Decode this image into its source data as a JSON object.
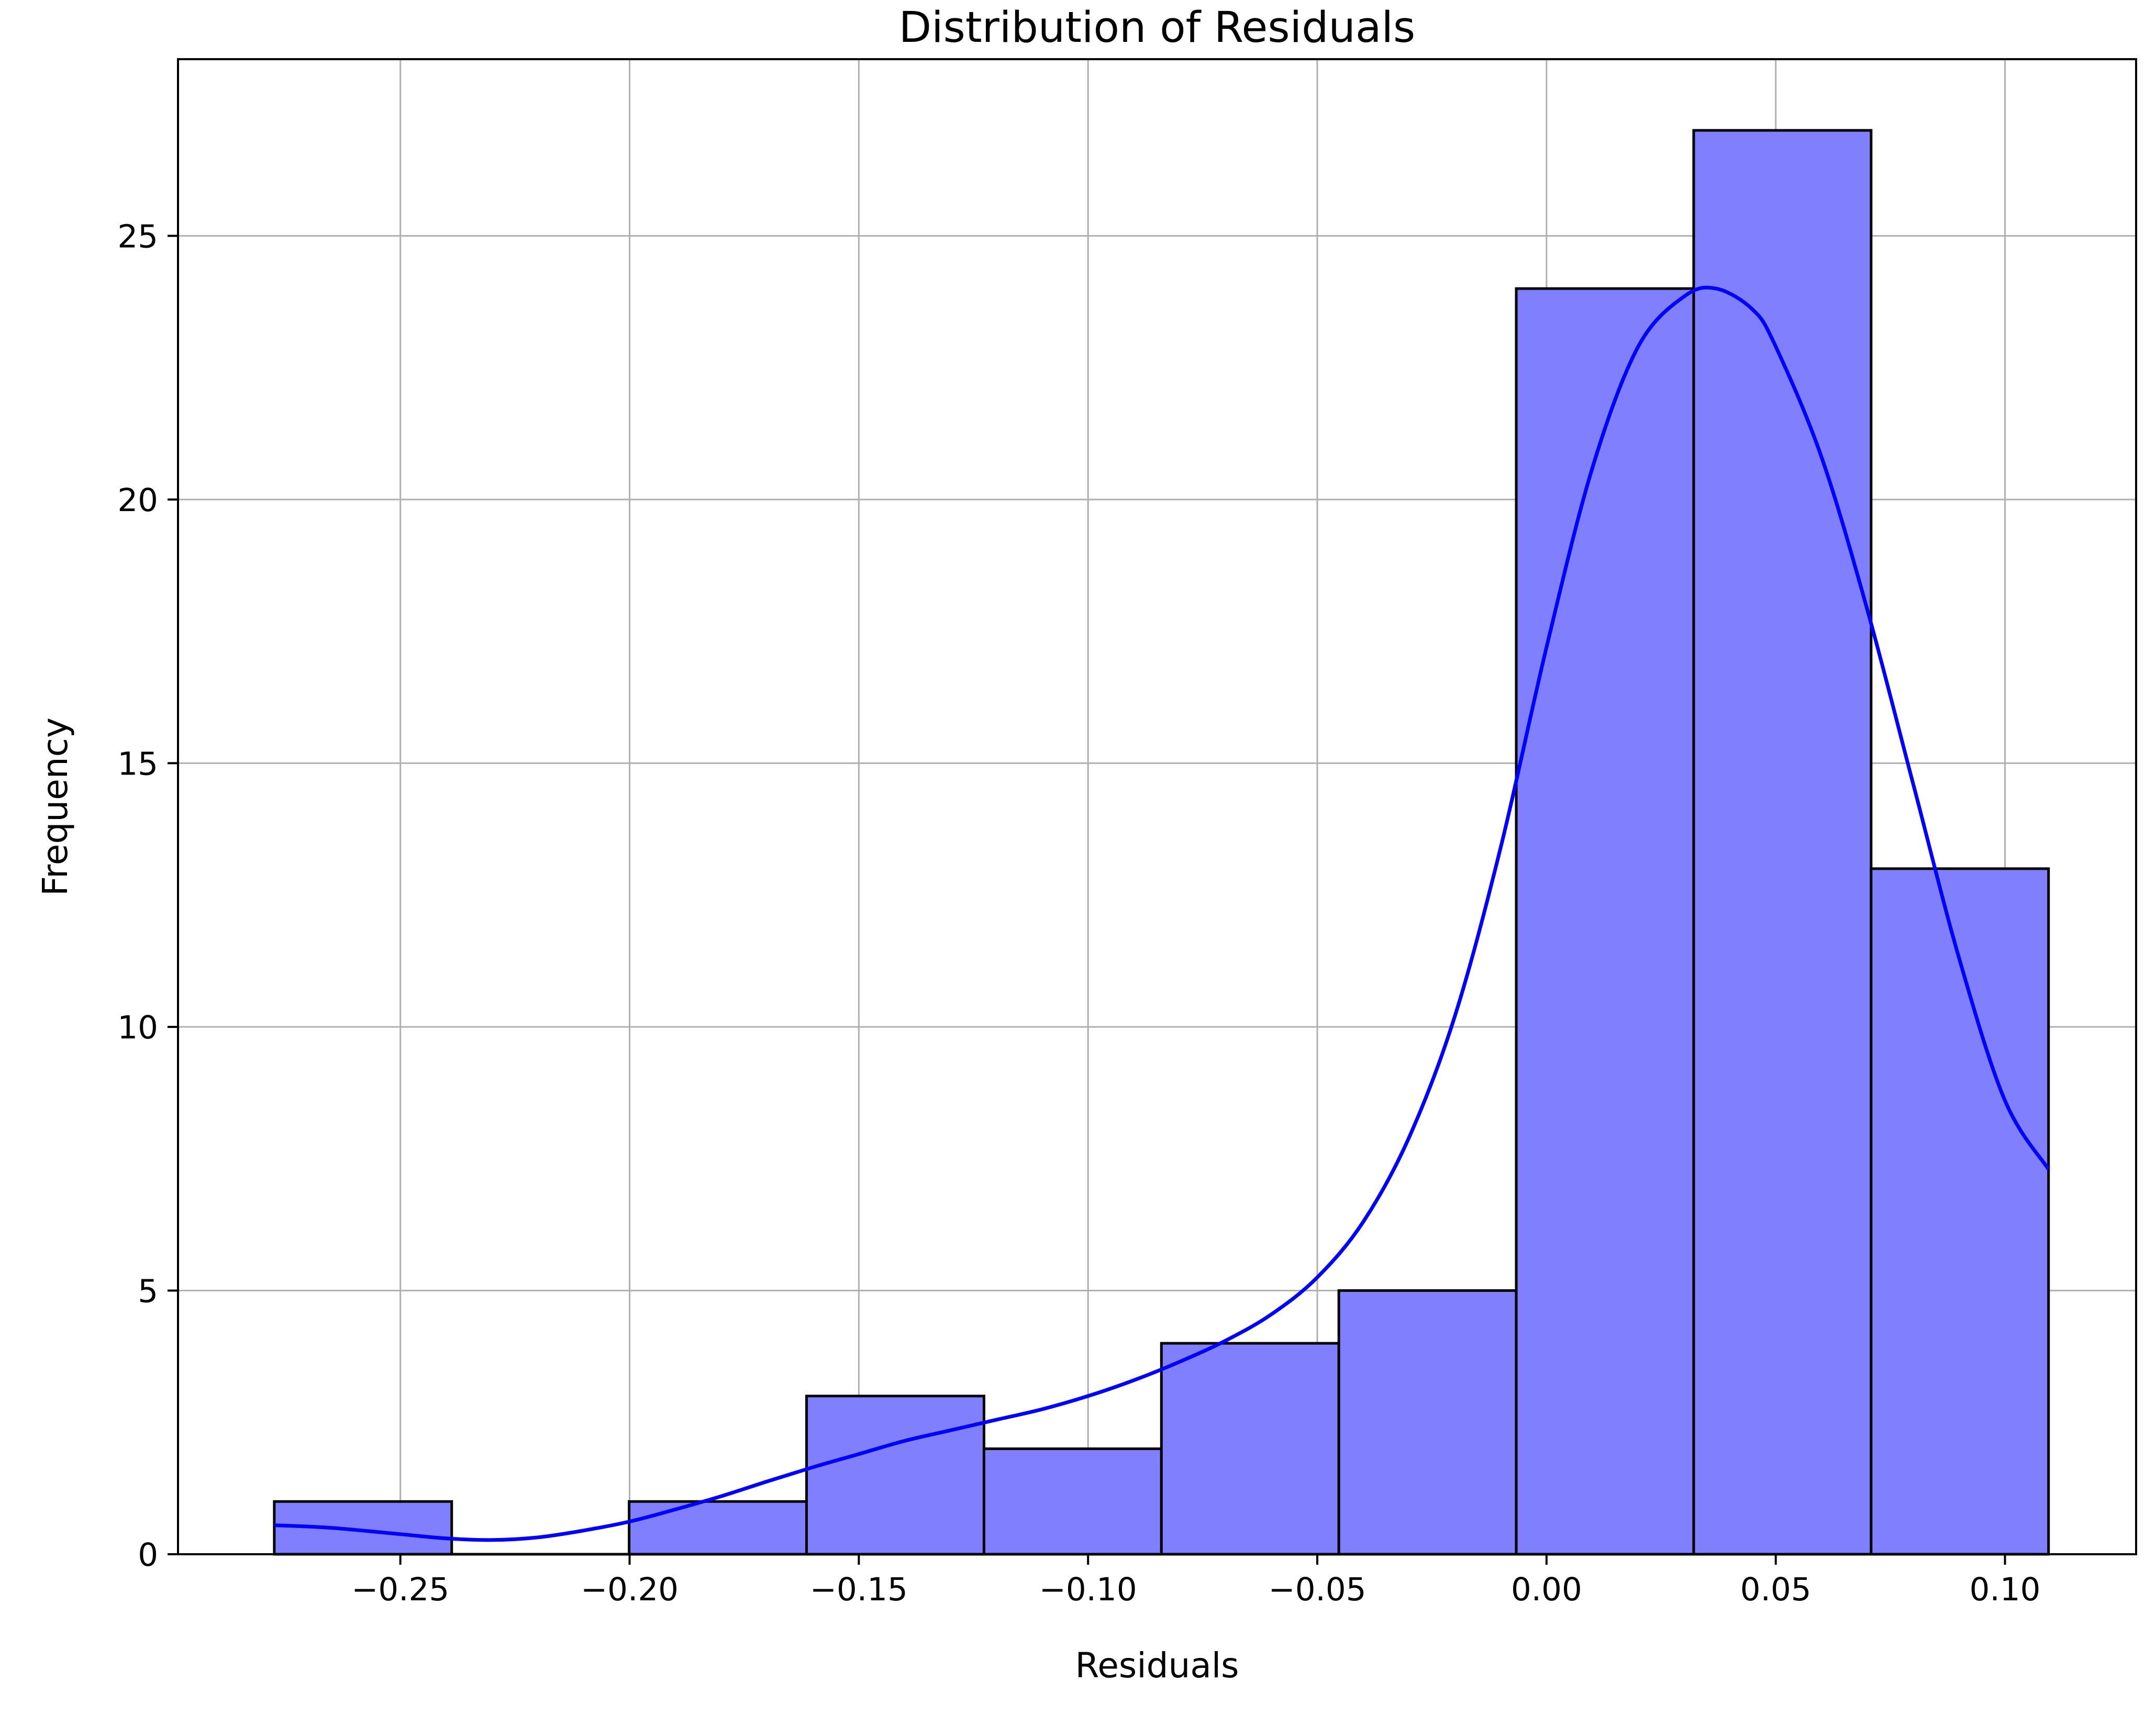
{
  "chart_data": {
    "type": "bar",
    "title": "Distribution of Residuals",
    "xlabel": "Residuals",
    "ylabel": "Frequency",
    "xlim": [
      -0.2985,
      0.1286
    ],
    "ylim": [
      0,
      28.35
    ],
    "xticks": [
      {
        "value": -0.25,
        "label": "−0.25"
      },
      {
        "value": -0.2,
        "label": "−0.20"
      },
      {
        "value": -0.15,
        "label": "−0.15"
      },
      {
        "value": -0.1,
        "label": "−0.10"
      },
      {
        "value": -0.05,
        "label": "−0.05"
      },
      {
        "value": 0.0,
        "label": "0.00"
      },
      {
        "value": 0.05,
        "label": "0.05"
      },
      {
        "value": 0.1,
        "label": "0.10"
      }
    ],
    "yticks": [
      {
        "value": 0,
        "label": "0"
      },
      {
        "value": 5,
        "label": "5"
      },
      {
        "value": 10,
        "label": "10"
      },
      {
        "value": 15,
        "label": "15"
      },
      {
        "value": 20,
        "label": "20"
      },
      {
        "value": 25,
        "label": "25"
      }
    ],
    "grid": true,
    "bins": [
      {
        "x0": -0.2775,
        "x1": -0.2388,
        "count": 1
      },
      {
        "x0": -0.2388,
        "x1": -0.2001,
        "count": 0
      },
      {
        "x0": -0.2001,
        "x1": -0.1614,
        "count": 1
      },
      {
        "x0": -0.1614,
        "x1": -0.1227,
        "count": 3
      },
      {
        "x0": -0.1227,
        "x1": -0.084,
        "count": 2
      },
      {
        "x0": -0.084,
        "x1": -0.0453,
        "count": 4
      },
      {
        "x0": -0.0453,
        "x1": -0.0066,
        "count": 5
      },
      {
        "x0": -0.0066,
        "x1": 0.0321,
        "count": 24
      },
      {
        "x0": 0.0321,
        "x1": 0.0708,
        "count": 27
      },
      {
        "x0": 0.0708,
        "x1": 0.1095,
        "count": 13
      }
    ],
    "kde_curve": {
      "x": [
        -0.2775,
        -0.265,
        -0.25,
        -0.24,
        -0.23,
        -0.22,
        -0.21,
        -0.2,
        -0.19,
        -0.18,
        -0.17,
        -0.16,
        -0.15,
        -0.14,
        -0.13,
        -0.12,
        -0.11,
        -0.1,
        -0.09,
        -0.08,
        -0.07,
        -0.06,
        -0.05,
        -0.04,
        -0.03,
        -0.02,
        -0.01,
        0.0,
        0.01,
        0.02,
        0.03,
        0.037,
        0.045,
        0.05,
        0.06,
        0.07,
        0.08,
        0.09,
        0.1,
        0.1095
      ],
      "y": [
        0.55,
        0.5,
        0.38,
        0.3,
        0.27,
        0.32,
        0.45,
        0.62,
        0.85,
        1.1,
        1.38,
        1.65,
        1.9,
        2.15,
        2.35,
        2.55,
        2.75,
        3.0,
        3.3,
        3.65,
        4.05,
        4.55,
        5.25,
        6.3,
        7.9,
        10.2,
        13.4,
        17.2,
        20.6,
        22.9,
        23.85,
        24.0,
        23.6,
        22.9,
        20.8,
        17.9,
        14.6,
        11.3,
        8.6,
        7.3
      ]
    },
    "colors": {
      "bar_fill": "#8080ff",
      "bar_edge": "#000000",
      "kde_line": "#0000ff",
      "grid": "#b0b0b0",
      "axes": "#000000"
    }
  }
}
